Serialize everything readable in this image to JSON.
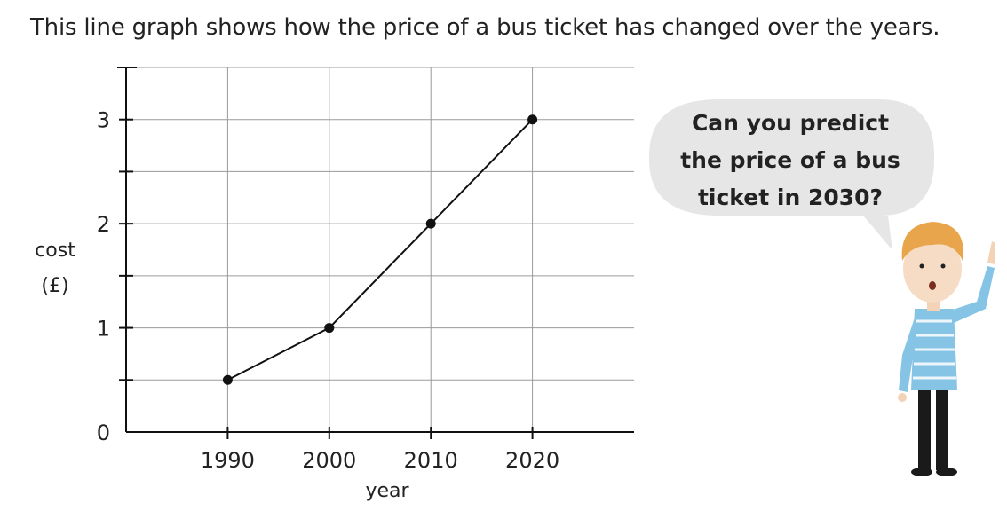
{
  "intro_text": "This line graph shows how the price of a bus ticket has changed over the years.",
  "speech_bubble": {
    "lines": [
      "Can you predict",
      "the price of a bus",
      "ticket in 2030?"
    ]
  },
  "chart_data": {
    "type": "line",
    "x": [
      1990,
      2000,
      2010,
      2020
    ],
    "values": [
      0.5,
      1,
      2,
      3
    ],
    "x_tick_labels": [
      "1990",
      "2000",
      "2010",
      "2020"
    ],
    "y_tick_labels": [
      "0",
      "1",
      "2",
      "3"
    ],
    "y_ticks": [
      0,
      1,
      2,
      3
    ],
    "xlabel": "year",
    "ylabel_lines": [
      "cost",
      "(£)"
    ],
    "xlim": [
      1980,
      2030
    ],
    "ylim": [
      0,
      3.5
    ],
    "grid": true,
    "colors": {
      "line": "#111111",
      "grid": "#9a9a9a",
      "bubble": "#e6e6e6",
      "shirt": "#86c4e6",
      "hair": "#e8a54b"
    }
  }
}
